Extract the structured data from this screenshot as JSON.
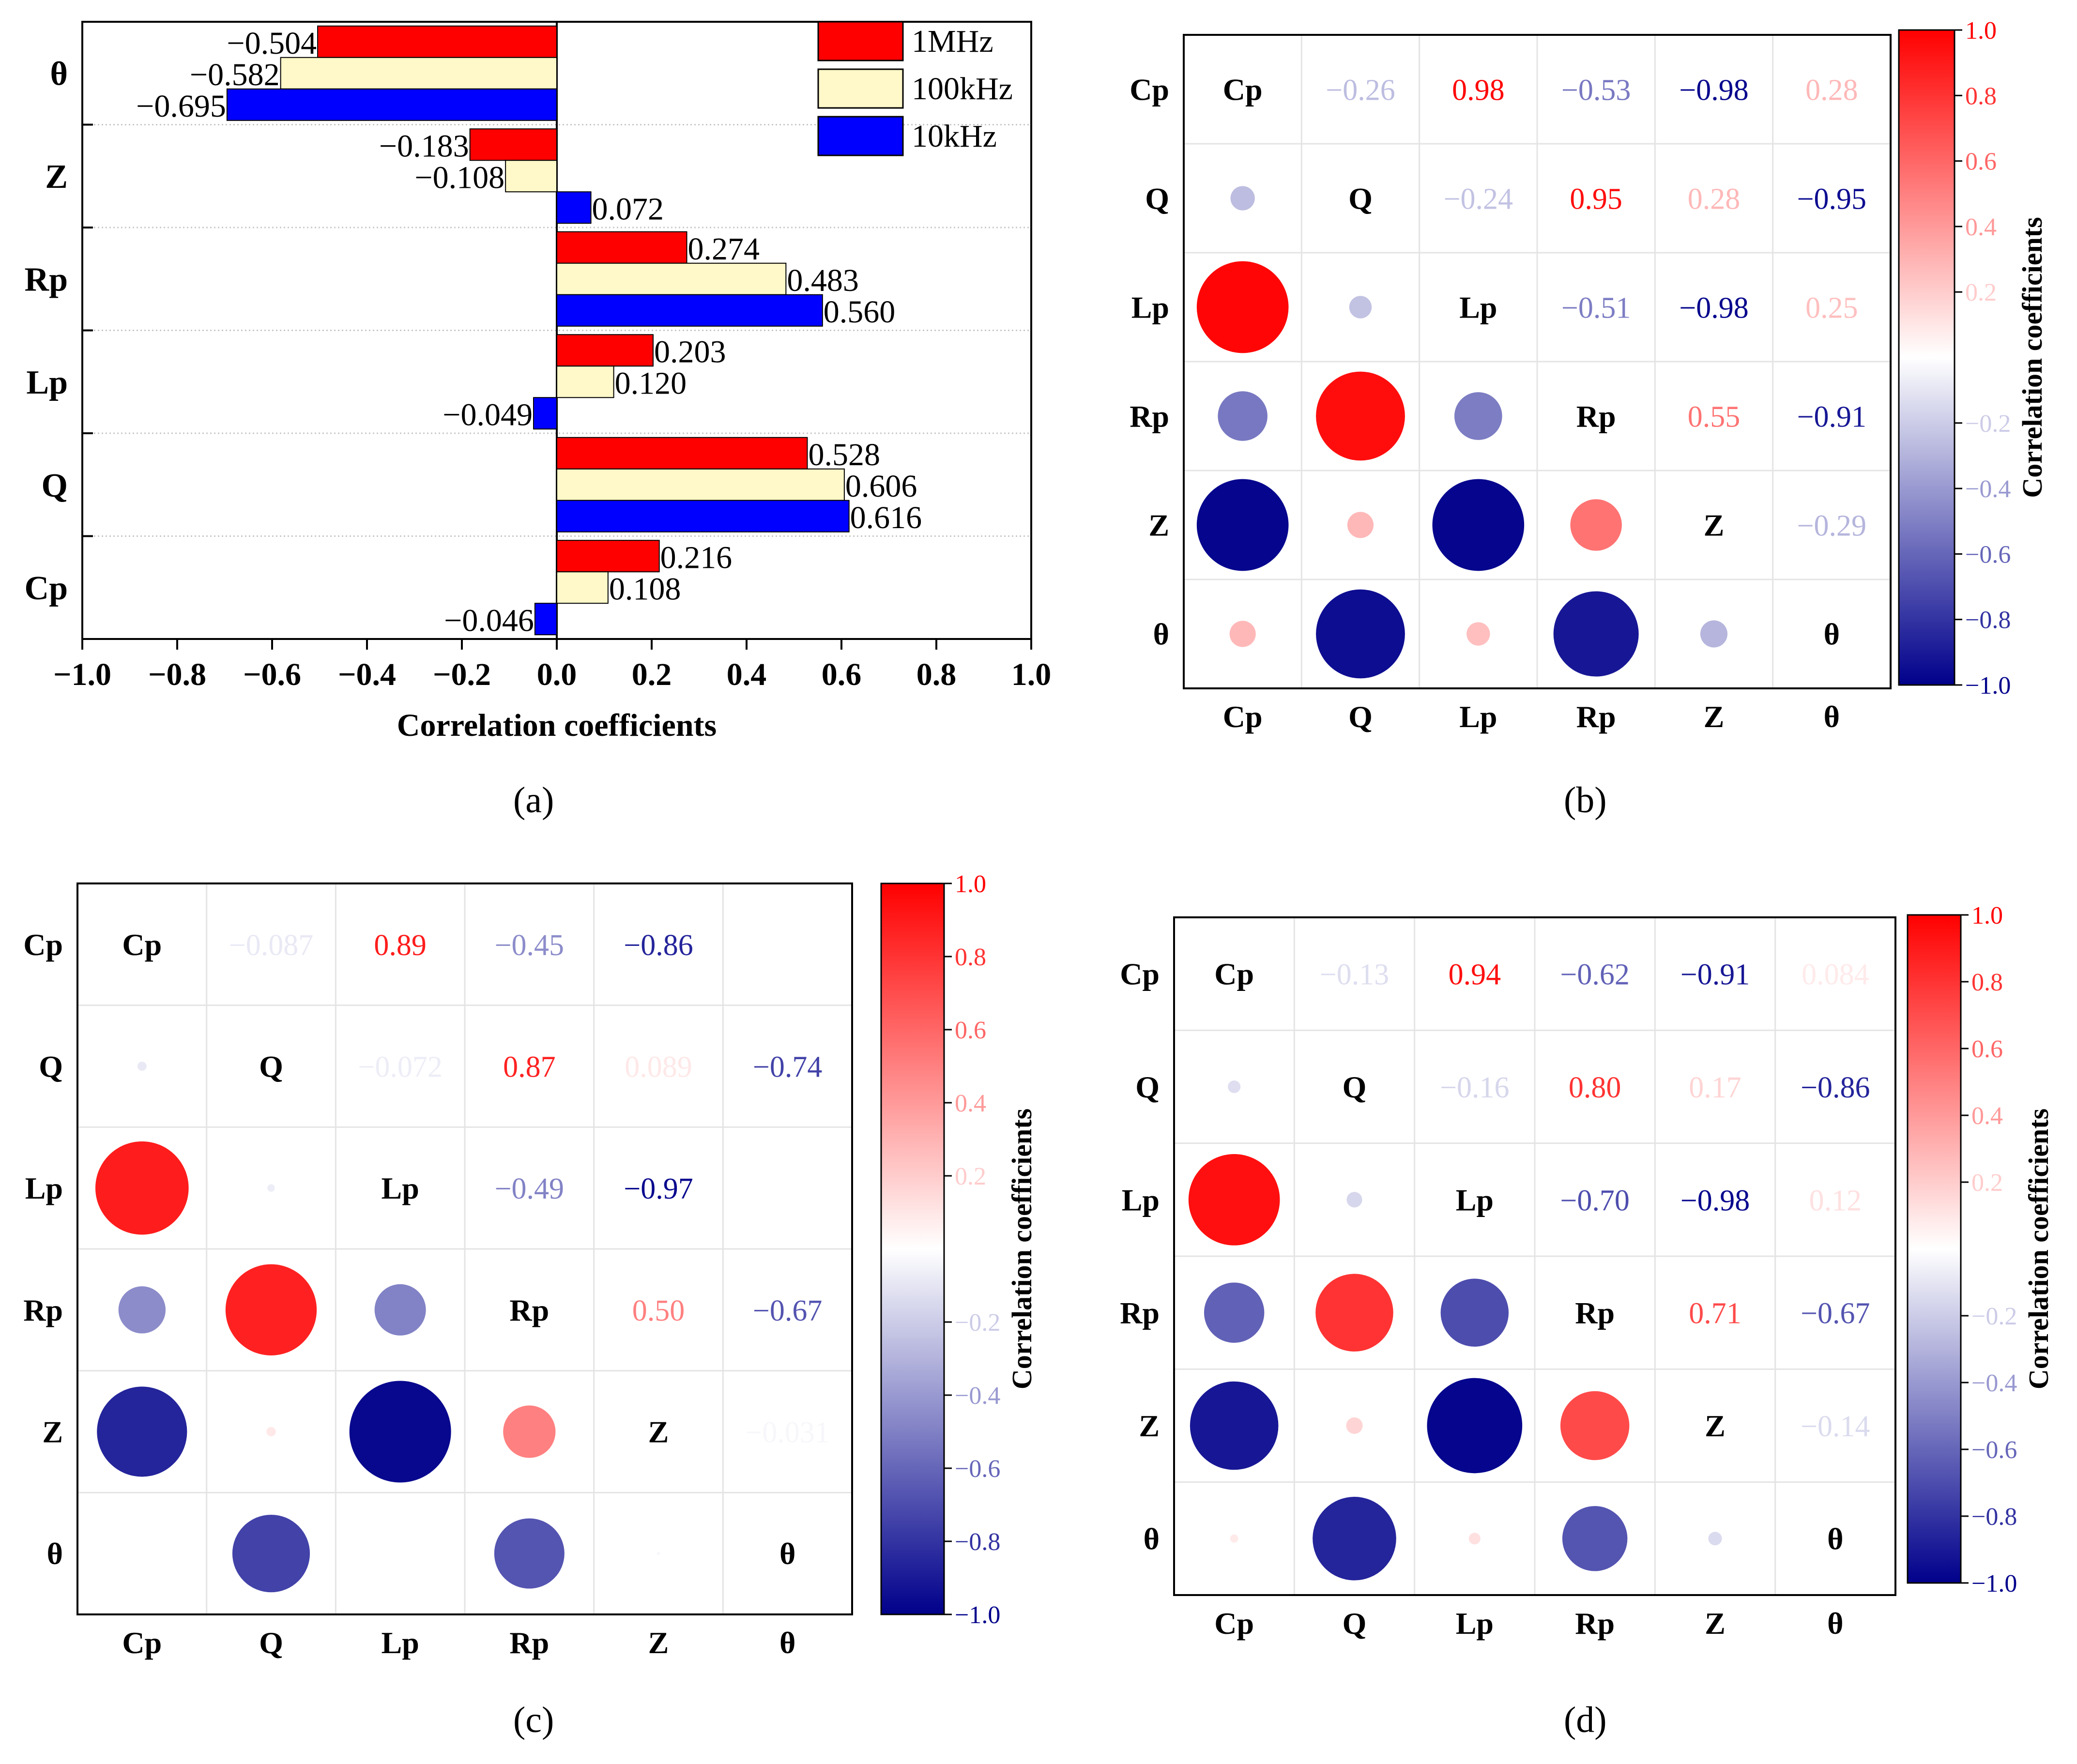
{
  "colors": {
    "f1mhz": "#ff0000",
    "f100khz": "#fff8c8",
    "f10khz": "#0000ff",
    "pos": "#ff0000",
    "neg": "#00008b",
    "axis": "#000000"
  },
  "panel_labels": [
    "(a)",
    "(b)",
    "(c)",
    "(d)"
  ],
  "chart_data": [
    {
      "type": "bar",
      "orientation": "horizontal",
      "id": "a",
      "categories": [
        "θ",
        "Z",
        "Rp",
        "Lp",
        "Q",
        "Cp"
      ],
      "series": [
        {
          "name": "1MHz",
          "values": [
            -0.504,
            -0.183,
            0.274,
            0.203,
            0.528,
            0.216
          ]
        },
        {
          "name": "100kHz",
          "values": [
            -0.582,
            -0.108,
            0.483,
            0.12,
            0.606,
            0.108
          ]
        },
        {
          "name": "10kHz",
          "values": [
            -0.695,
            0.072,
            0.56,
            -0.049,
            0.616,
            -0.046
          ]
        }
      ],
      "value_labels": [
        [
          "−0.504",
          "−0.183",
          "0.274",
          "0.203",
          "0.528",
          "0.216"
        ],
        [
          "−0.582",
          "−0.108",
          "0.483",
          "0.120",
          "0.606",
          "0.108"
        ],
        [
          "−0.695",
          "0.072",
          "0.560",
          "−0.049",
          "0.616",
          "−0.046"
        ]
      ],
      "xlabel": "Correlation coefficients",
      "xlim": [
        -1.0,
        1.0
      ],
      "xticks": [
        "−1.0",
        "−0.8",
        "−0.6",
        "−0.4",
        "−0.2",
        "0.0",
        "0.2",
        "0.4",
        "0.6",
        "0.8",
        "1.0"
      ],
      "xtick_values": [
        -1.0,
        -0.8,
        -0.6,
        -0.4,
        -0.2,
        0.0,
        0.2,
        0.4,
        0.6,
        0.8,
        1.0
      ],
      "legend_position": "top-right"
    },
    {
      "type": "heatmap",
      "id": "b",
      "variables": [
        "Cp",
        "Q",
        "Lp",
        "Rp",
        "Z",
        "θ"
      ],
      "matrix": [
        [
          1,
          -0.26,
          0.98,
          -0.53,
          -0.98,
          0.28
        ],
        [
          -0.26,
          1,
          -0.24,
          0.95,
          0.28,
          -0.95
        ],
        [
          0.98,
          -0.24,
          1,
          -0.51,
          -0.98,
          0.25
        ],
        [
          -0.53,
          0.95,
          -0.51,
          1,
          0.55,
          -0.91
        ],
        [
          -0.98,
          0.28,
          -0.98,
          0.55,
          1,
          -0.29
        ],
        [
          0.28,
          -0.95,
          0.25,
          -0.91,
          -0.29,
          1
        ]
      ],
      "upper_labels": [
        [
          "",
          "−0.26",
          "0.98",
          "−0.53",
          "−0.98",
          "0.28"
        ],
        [
          "",
          "",
          "−0.24",
          "0.95",
          "0.28",
          "−0.95"
        ],
        [
          "",
          "",
          "",
          "−0.51",
          "−0.98",
          "0.25"
        ],
        [
          "",
          "",
          "",
          "",
          "0.55",
          "−0.91"
        ],
        [
          "",
          "",
          "",
          "",
          "",
          "−0.29"
        ],
        [
          "",
          "",
          "",
          "",
          "",
          ""
        ]
      ],
      "colorbar_label": "Correlation coefficients",
      "colorbar_ticks": [
        "1.0",
        "0.8",
        "0.6",
        "0.4",
        "0.2",
        "−0.2",
        "−0.4",
        "−0.6",
        "−0.8",
        "−1.0"
      ],
      "colorbar_tick_values": [
        1.0,
        0.8,
        0.6,
        0.4,
        0.2,
        -0.2,
        -0.4,
        -0.6,
        -0.8,
        -1.0
      ],
      "clim": [
        -1.0,
        1.0
      ]
    },
    {
      "type": "heatmap",
      "id": "c",
      "variables": [
        "Cp",
        "Q",
        "Lp",
        "Rp",
        "Z",
        "θ"
      ],
      "matrix": [
        [
          1,
          -0.087,
          0.89,
          -0.45,
          -0.86,
          0.0
        ],
        [
          -0.087,
          1,
          -0.072,
          0.87,
          0.089,
          -0.74
        ],
        [
          0.89,
          -0.072,
          1,
          -0.49,
          -0.97,
          0.0
        ],
        [
          -0.45,
          0.87,
          -0.49,
          1,
          0.5,
          -0.67
        ],
        [
          -0.86,
          0.089,
          -0.97,
          0.5,
          1,
          -0.031
        ],
        [
          0.0,
          -0.74,
          0.0,
          -0.67,
          -0.031,
          1
        ]
      ],
      "upper_labels": [
        [
          "",
          "−0.087",
          "0.89",
          "−0.45",
          "−0.86",
          ""
        ],
        [
          "",
          "",
          "−0.072",
          "0.87",
          "0.089",
          "−0.74"
        ],
        [
          "",
          "",
          "",
          "−0.49",
          "−0.97",
          ""
        ],
        [
          "",
          "",
          "",
          "",
          "0.50",
          "−0.67"
        ],
        [
          "",
          "",
          "",
          "",
          "",
          "−0.031"
        ],
        [
          "",
          "",
          "",
          "",
          "",
          ""
        ]
      ],
      "colorbar_label": "Correlation coefficients",
      "colorbar_ticks": [
        "1.0",
        "0.8",
        "0.6",
        "0.4",
        "0.2",
        "−0.2",
        "−0.4",
        "−0.6",
        "−0.8",
        "−1.0"
      ],
      "colorbar_tick_values": [
        1.0,
        0.8,
        0.6,
        0.4,
        0.2,
        -0.2,
        -0.4,
        -0.6,
        -0.8,
        -1.0
      ],
      "clim": [
        -1.0,
        1.0
      ]
    },
    {
      "type": "heatmap",
      "id": "d",
      "variables": [
        "Cp",
        "Q",
        "Lp",
        "Rp",
        "Z",
        "θ"
      ],
      "matrix": [
        [
          1,
          -0.13,
          0.94,
          -0.62,
          -0.91,
          0.084
        ],
        [
          -0.13,
          1,
          -0.16,
          0.8,
          0.17,
          -0.86
        ],
        [
          0.94,
          -0.16,
          1,
          -0.7,
          -0.98,
          0.12
        ],
        [
          -0.62,
          0.8,
          -0.7,
          1,
          0.71,
          -0.67
        ],
        [
          -0.91,
          0.17,
          -0.98,
          0.71,
          1,
          -0.14
        ],
        [
          0.084,
          -0.86,
          0.12,
          -0.67,
          -0.14,
          1
        ]
      ],
      "upper_labels": [
        [
          "",
          "−0.13",
          "0.94",
          "−0.62",
          "−0.91",
          "0.084"
        ],
        [
          "",
          "",
          "−0.16",
          "0.80",
          "0.17",
          "−0.86"
        ],
        [
          "",
          "",
          "",
          "−0.70",
          "−0.98",
          "0.12"
        ],
        [
          "",
          "",
          "",
          "",
          "0.71",
          "−0.67"
        ],
        [
          "",
          "",
          "",
          "",
          "",
          "−0.14"
        ],
        [
          "",
          "",
          "",
          "",
          "",
          ""
        ]
      ],
      "colorbar_label": "Correlation coefficients",
      "colorbar_ticks": [
        "1.0",
        "0.8",
        "0.6",
        "0.4",
        "0.2",
        "−0.2",
        "−0.4",
        "−0.6",
        "−0.8",
        "−1.0"
      ],
      "colorbar_tick_values": [
        1.0,
        0.8,
        0.6,
        0.4,
        0.2,
        -0.2,
        -0.4,
        -0.6,
        -0.8,
        -1.0
      ],
      "clim": [
        -1.0,
        1.0
      ]
    }
  ]
}
